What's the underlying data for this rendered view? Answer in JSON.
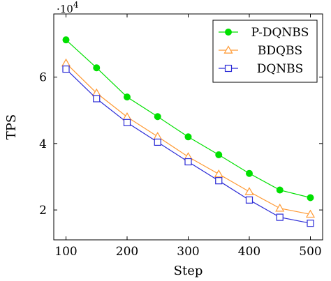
{
  "chart_data": {
    "type": "line",
    "xlabel": "Step",
    "ylabel": "TPS",
    "y_multiplier": "·10",
    "y_multiplier_exp": "4",
    "x": [
      100,
      150,
      200,
      250,
      300,
      350,
      400,
      450,
      500
    ],
    "xlim": [
      80,
      520
    ],
    "ylim": [
      1.1,
      7.9
    ],
    "x_ticks": [
      100,
      200,
      300,
      400,
      500
    ],
    "x_tick_labels": [
      "100",
      "200",
      "300",
      "400",
      "500"
    ],
    "y_ticks": [
      2,
      4,
      6
    ],
    "y_tick_labels": [
      "2",
      "4",
      "6"
    ],
    "grid": false,
    "legend_position": "top-right",
    "series": [
      {
        "name": "P-DQNBS",
        "color": "#00e000",
        "marker": "filled-circle",
        "values": [
          7.12,
          6.28,
          5.4,
          4.81,
          4.2,
          3.66,
          3.1,
          2.6,
          2.37
        ]
      },
      {
        "name": "BDQBS",
        "color": "#ff9933",
        "marker": "triangle",
        "values": [
          6.42,
          5.52,
          4.8,
          4.21,
          3.6,
          3.08,
          2.55,
          2.05,
          1.87
        ]
      },
      {
        "name": "DQNBS",
        "color": "#2a2ad6",
        "marker": "square",
        "values": [
          6.24,
          5.35,
          4.63,
          4.04,
          3.45,
          2.88,
          2.3,
          1.78,
          1.6
        ]
      }
    ]
  }
}
